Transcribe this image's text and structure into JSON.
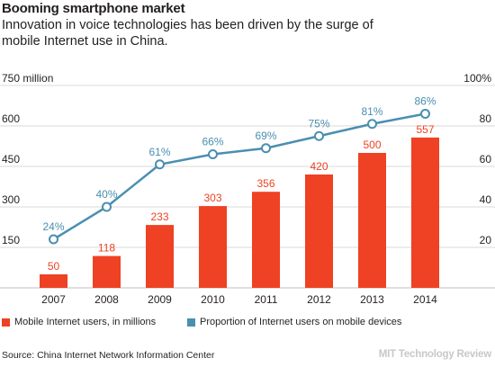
{
  "title": "Booming smartphone market",
  "subtitle": "Innovation in voice technologies has been driven by the surge of mobile Internet use in China.",
  "source": "Source: China Internet Network Information Center",
  "brand": "MIT Technology Review",
  "colors": {
    "bar": "#ef4123",
    "line": "#4a8fb0",
    "grid": "#d9d9d9",
    "text": "#231f20"
  },
  "chart_data": {
    "type": "bar",
    "categories": [
      "2007",
      "2008",
      "2009",
      "2010",
      "2011",
      "2012",
      "2013",
      "2014"
    ],
    "series": [
      {
        "name": "Mobile Internet users, in millions",
        "type": "bar",
        "axis": "left",
        "values": [
          50,
          118,
          233,
          303,
          356,
          420,
          500,
          557
        ],
        "labels": [
          "50",
          "118",
          "233",
          "303",
          "356",
          "420",
          "500",
          "557"
        ]
      },
      {
        "name": "Proportion of Internet users on mobile devices",
        "type": "line",
        "axis": "right",
        "values": [
          24,
          40,
          61,
          66,
          69,
          75,
          81,
          86
        ],
        "labels": [
          "24%",
          "40%",
          "61%",
          "66%",
          "69%",
          "75%",
          "81%",
          "86%"
        ]
      }
    ],
    "y_left": {
      "ylim": [
        0,
        750
      ],
      "ticks": [
        150,
        300,
        450,
        600,
        750
      ],
      "tick_labels": [
        "150",
        "300",
        "450",
        "600",
        "750 million"
      ]
    },
    "y_right": {
      "ylim": [
        0,
        100
      ],
      "ticks": [
        20,
        40,
        60,
        80,
        100
      ],
      "tick_labels": [
        "20",
        "40",
        "60",
        "80",
        "100%"
      ]
    },
    "grid": true,
    "legend_position": "bottom"
  }
}
